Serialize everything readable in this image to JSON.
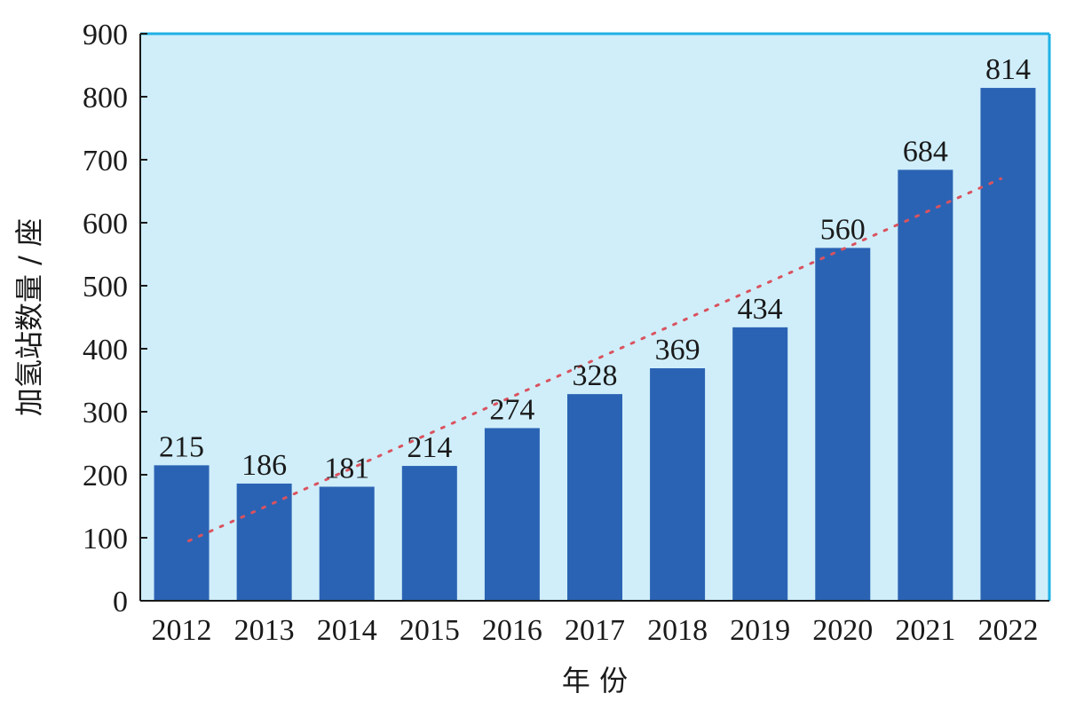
{
  "chart_data": {
    "type": "bar",
    "xlabel": "年 份",
    "ylabel": "加氢站数量 / 座",
    "ylim": [
      0,
      900
    ],
    "yticks": [
      0,
      100,
      200,
      300,
      400,
      500,
      600,
      700,
      800,
      900
    ],
    "categories": [
      "2012",
      "2013",
      "2014",
      "2015",
      "2016",
      "2017",
      "2018",
      "2019",
      "2020",
      "2021",
      "2022"
    ],
    "values": [
      215,
      186,
      181,
      214,
      274,
      328,
      369,
      434,
      560,
      684,
      814
    ],
    "trendline": {
      "style": "dotted",
      "from_category": "2012",
      "to_category": "2022",
      "y_start": 95,
      "y_end": 670
    },
    "grid": false,
    "colors": {
      "plot_background": "#cfeefa",
      "bar": "#2b63b4",
      "frame": "#1fb0e6",
      "trendline": "#d9535f"
    }
  }
}
